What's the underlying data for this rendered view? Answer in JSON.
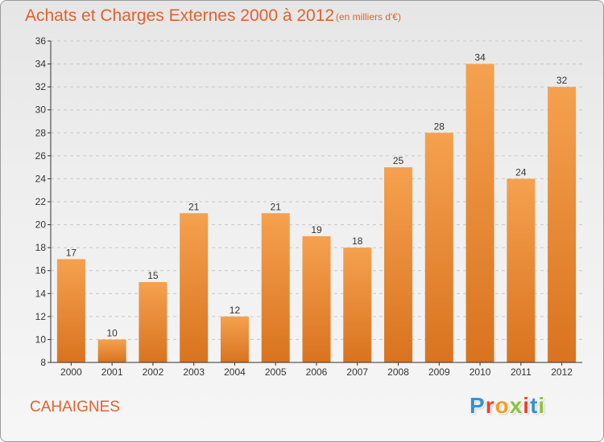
{
  "header": {
    "title": "Achats et Charges Externes 2000 à 2012",
    "unit": "(en milliers d'€)"
  },
  "footer": {
    "commune": "CAHAIGNES",
    "logo_text": "Proxiti",
    "logo_colors": [
      "#3a8fd0",
      "#e8452c",
      "#f0a020",
      "#8ac43f",
      "#e8452c",
      "#3a8fd0",
      "#8ac43f"
    ]
  },
  "colors": {
    "bar_top": "#f5a14f",
    "bar_bottom": "#d9731f",
    "accent_text": "#e0622a",
    "axis": "#333333",
    "grid": "#c8c8c8"
  },
  "chart_data": {
    "type": "bar",
    "title": "Achats et Charges Externes 2000 à 2012",
    "subtitle": "(en milliers d'€)",
    "categories": [
      "2000",
      "2001",
      "2002",
      "2003",
      "2004",
      "2005",
      "2006",
      "2007",
      "2008",
      "2009",
      "2010",
      "2011",
      "2012"
    ],
    "values": [
      17,
      10,
      15,
      21,
      12,
      21,
      19,
      18,
      25,
      28,
      34,
      24,
      32
    ],
    "ylim": [
      8,
      36
    ],
    "yticks": [
      8,
      10,
      12,
      14,
      16,
      18,
      20,
      22,
      24,
      26,
      28,
      30,
      32,
      34,
      36
    ],
    "grid": true,
    "data_labels": true
  }
}
